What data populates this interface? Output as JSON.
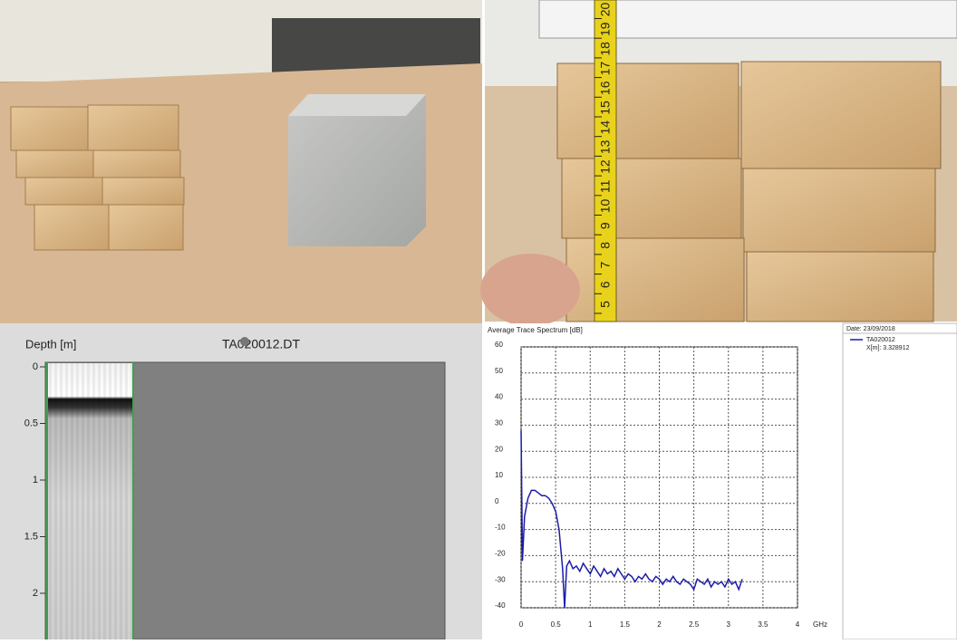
{
  "photos": {
    "ruler_numbers": [
      5,
      6,
      7,
      8,
      9,
      10,
      11,
      12,
      13,
      14,
      15,
      16,
      17,
      18,
      19,
      20
    ]
  },
  "chart_data": [
    {
      "type": "radargram",
      "title": "TA020012.DT",
      "y_label": "Depth [m]",
      "ylim": [
        0,
        2.4
      ],
      "yticks": [
        0,
        0.5,
        1,
        1.5,
        2
      ]
    },
    {
      "type": "line",
      "title": "Average Trace Spectrum [dB]",
      "x_label": "GHz",
      "annotation": "Date: 23/09/2018",
      "xlim": [
        0,
        4
      ],
      "xticks": [
        0,
        0.5,
        1,
        1.5,
        2,
        2.5,
        3,
        3.5,
        4
      ],
      "ylim": [
        -40,
        60
      ],
      "yticks": [
        -40,
        -30,
        -20,
        -10,
        0,
        10,
        20,
        30,
        40,
        50,
        60
      ],
      "grid": true,
      "series": [
        {
          "name": "TA020012",
          "detail": "X[m]: 3.328912",
          "color": "#1c1ca8",
          "x": [
            0,
            0.02,
            0.05,
            0.1,
            0.15,
            0.2,
            0.25,
            0.3,
            0.35,
            0.4,
            0.45,
            0.5,
            0.55,
            0.6,
            0.63,
            0.66,
            0.7,
            0.75,
            0.8,
            0.85,
            0.9,
            0.95,
            1,
            1.05,
            1.1,
            1.15,
            1.2,
            1.25,
            1.3,
            1.35,
            1.4,
            1.45,
            1.5,
            1.55,
            1.6,
            1.65,
            1.7,
            1.75,
            1.8,
            1.85,
            1.9,
            1.95,
            2,
            2.05,
            2.1,
            2.15,
            2.2,
            2.25,
            2.3,
            2.35,
            2.4,
            2.45,
            2.5,
            2.55,
            2.6,
            2.65,
            2.7,
            2.75,
            2.8,
            2.85,
            2.9,
            2.95,
            3,
            3.05,
            3.1,
            3.15,
            3.2
          ],
          "values": [
            28,
            -22,
            -5,
            2,
            5,
            5,
            4,
            3,
            3,
            2,
            0,
            -3,
            -10,
            -25,
            -40,
            -24,
            -22,
            -25,
            -24,
            -26,
            -23,
            -25,
            -27,
            -24,
            -26,
            -28,
            -25,
            -27,
            -26,
            -28,
            -25,
            -27,
            -29,
            -27,
            -28,
            -30,
            -28,
            -29,
            -27,
            -29,
            -30,
            -28,
            -29,
            -31,
            -29,
            -30,
            -28,
            -30,
            -31,
            -29,
            -30,
            -31,
            -33,
            -29,
            -30,
            -31,
            -29,
            -32,
            -30,
            -31,
            -30,
            -32,
            -29,
            -31,
            -30,
            -33,
            -29
          ]
        }
      ]
    }
  ]
}
